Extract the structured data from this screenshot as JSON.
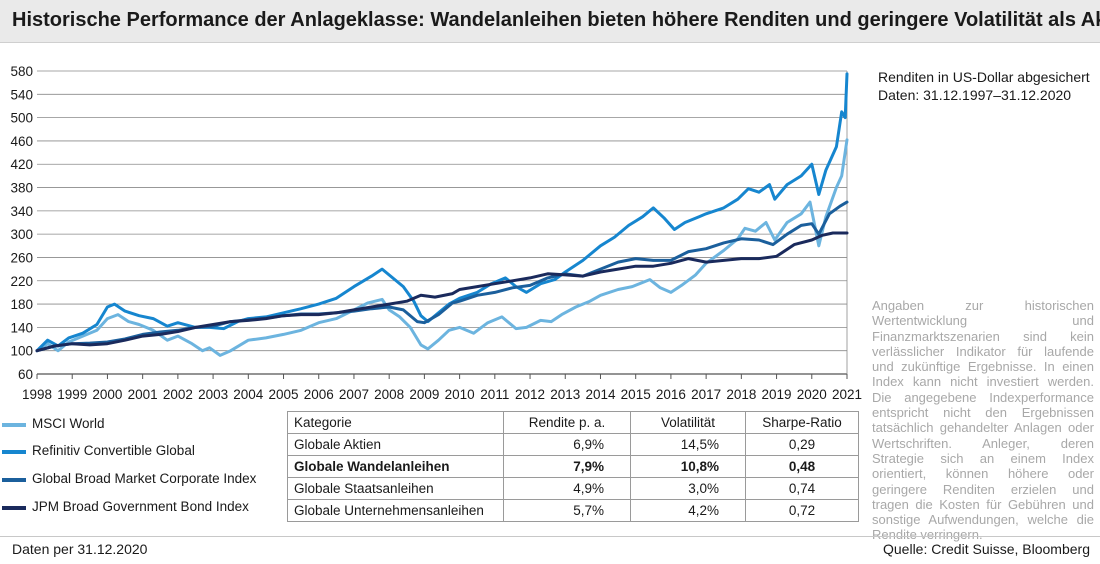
{
  "header": {
    "title": "Historische Performance der Anlageklasse: Wandelanleihen bieten höhere Renditen und geringere Volatilität als Aktien"
  },
  "notes": {
    "line1": "Renditen in US-Dollar abgesichert",
    "line2": "Daten: 31.12.1997–31.12.2020"
  },
  "disclaimer": "Angaben zur historischen Wertentwicklung und Finanzmarktszenarien sind kein verlässlicher Indikator für laufende und zukünftige Ergebnisse. In einen Index kann nicht investiert werden. Die angegebene Indexperformance entspricht nicht den Ergebnissen tatsächlich gehandelter Anlagen oder Wertschriften. Anleger, deren Strategie sich an einem Index orientiert, können höhere oder geringere Renditen erzielen und tragen die Kosten für Gebühren und sonstige Aufwendungen, welche die Rendite verringern.",
  "legend": [
    {
      "label": "MSCI World",
      "color": "#6cb4df"
    },
    {
      "label": "Refinitiv Convertible Global",
      "color": "#1686cf"
    },
    {
      "label": "Global Broad Market Corporate Index",
      "color": "#1b5f9c"
    },
    {
      "label": "JPM Broad Government Bond Index",
      "color": "#1a2a5c"
    }
  ],
  "table": {
    "headers": [
      "Kategorie",
      "Rendite p. a.",
      "Volatilität",
      "Sharpe-Ratio"
    ],
    "rows": [
      {
        "cells": [
          "Globale Aktien",
          "6,9%",
          "14,5%",
          "0,29"
        ],
        "bold": false
      },
      {
        "cells": [
          "Globale Wandelanleihen",
          "7,9%",
          "10,8%",
          "0,48"
        ],
        "bold": true
      },
      {
        "cells": [
          "Globale Staatsanleihen",
          "4,9%",
          "3,0%",
          "0,74"
        ],
        "bold": false
      },
      {
        "cells": [
          "Globale Unternehmensanleihen",
          "5,7%",
          "4,2%",
          "0,72"
        ],
        "bold": false
      }
    ]
  },
  "footer": {
    "left": "Daten per 31.12.2020",
    "right": "Quelle: Credit Suisse, Bloomberg"
  },
  "chart_data": {
    "type": "line",
    "title": "",
    "xlabel": "",
    "ylabel": "",
    "xlim": [
      1998,
      2021
    ],
    "ylim": [
      60,
      580
    ],
    "yticks": [
      60,
      100,
      140,
      180,
      220,
      260,
      300,
      340,
      380,
      420,
      460,
      500,
      540,
      580
    ],
    "xticks": [
      1998,
      1999,
      2000,
      2001,
      2002,
      2003,
      2004,
      2005,
      2006,
      2007,
      2008,
      2009,
      2010,
      2011,
      2012,
      2013,
      2014,
      2015,
      2016,
      2017,
      2018,
      2019,
      2020,
      2021
    ],
    "grid": "horizontal",
    "series": [
      {
        "name": "MSCI World",
        "color": "#6cb4df",
        "points": [
          [
            1998.0,
            100
          ],
          [
            1998.3,
            112
          ],
          [
            1998.6,
            100
          ],
          [
            1998.9,
            115
          ],
          [
            1999.3,
            125
          ],
          [
            1999.7,
            135
          ],
          [
            2000.0,
            155
          ],
          [
            2000.3,
            162
          ],
          [
            2000.6,
            150
          ],
          [
            2000.9,
            145
          ],
          [
            2001.3,
            135
          ],
          [
            2001.7,
            118
          ],
          [
            2002.0,
            125
          ],
          [
            2002.4,
            112
          ],
          [
            2002.7,
            100
          ],
          [
            2002.9,
            105
          ],
          [
            2003.2,
            92
          ],
          [
            2003.5,
            100
          ],
          [
            2004.0,
            118
          ],
          [
            2004.5,
            122
          ],
          [
            2005.0,
            128
          ],
          [
            2005.5,
            135
          ],
          [
            2006.0,
            148
          ],
          [
            2006.5,
            155
          ],
          [
            2007.0,
            170
          ],
          [
            2007.4,
            182
          ],
          [
            2007.8,
            188
          ],
          [
            2008.0,
            170
          ],
          [
            2008.3,
            158
          ],
          [
            2008.6,
            140
          ],
          [
            2008.9,
            110
          ],
          [
            2009.1,
            103
          ],
          [
            2009.4,
            118
          ],
          [
            2009.7,
            135
          ],
          [
            2010.0,
            140
          ],
          [
            2010.4,
            130
          ],
          [
            2010.8,
            148
          ],
          [
            2011.2,
            158
          ],
          [
            2011.6,
            138
          ],
          [
            2011.9,
            140
          ],
          [
            2012.3,
            152
          ],
          [
            2012.6,
            150
          ],
          [
            2012.9,
            162
          ],
          [
            2013.3,
            175
          ],
          [
            2013.7,
            185
          ],
          [
            2014.0,
            195
          ],
          [
            2014.5,
            205
          ],
          [
            2014.9,
            210
          ],
          [
            2015.4,
            222
          ],
          [
            2015.7,
            208
          ],
          [
            2016.0,
            200
          ],
          [
            2016.3,
            212
          ],
          [
            2016.7,
            230
          ],
          [
            2017.0,
            250
          ],
          [
            2017.5,
            272
          ],
          [
            2017.9,
            292
          ],
          [
            2018.1,
            310
          ],
          [
            2018.4,
            305
          ],
          [
            2018.7,
            320
          ],
          [
            2018.95,
            290
          ],
          [
            2019.3,
            320
          ],
          [
            2019.7,
            335
          ],
          [
            2019.95,
            355
          ],
          [
            2020.2,
            280
          ],
          [
            2020.4,
            330
          ],
          [
            2020.7,
            380
          ],
          [
            2020.85,
            400
          ],
          [
            2021.0,
            462
          ]
        ]
      },
      {
        "name": "Refinitiv Convertible Global",
        "color": "#1686cf",
        "points": [
          [
            1998.0,
            100
          ],
          [
            1998.3,
            118
          ],
          [
            1998.6,
            108
          ],
          [
            1998.9,
            122
          ],
          [
            1999.3,
            130
          ],
          [
            1999.7,
            145
          ],
          [
            2000.0,
            175
          ],
          [
            2000.2,
            180
          ],
          [
            2000.5,
            168
          ],
          [
            2000.9,
            160
          ],
          [
            2001.3,
            155
          ],
          [
            2001.7,
            142
          ],
          [
            2002.0,
            148
          ],
          [
            2002.5,
            140
          ],
          [
            2002.9,
            140
          ],
          [
            2003.3,
            138
          ],
          [
            2003.7,
            150
          ],
          [
            2004.0,
            155
          ],
          [
            2004.5,
            158
          ],
          [
            2005.0,
            165
          ],
          [
            2005.5,
            172
          ],
          [
            2006.0,
            180
          ],
          [
            2006.5,
            190
          ],
          [
            2007.0,
            210
          ],
          [
            2007.5,
            228
          ],
          [
            2007.8,
            240
          ],
          [
            2008.1,
            225
          ],
          [
            2008.4,
            210
          ],
          [
            2008.7,
            185
          ],
          [
            2008.9,
            160
          ],
          [
            2009.1,
            150
          ],
          [
            2009.4,
            165
          ],
          [
            2009.7,
            180
          ],
          [
            2010.0,
            190
          ],
          [
            2010.5,
            200
          ],
          [
            2010.9,
            215
          ],
          [
            2011.3,
            225
          ],
          [
            2011.6,
            210
          ],
          [
            2011.9,
            200
          ],
          [
            2012.3,
            215
          ],
          [
            2012.7,
            222
          ],
          [
            2013.0,
            235
          ],
          [
            2013.5,
            255
          ],
          [
            2014.0,
            280
          ],
          [
            2014.4,
            295
          ],
          [
            2014.8,
            315
          ],
          [
            2015.2,
            330
          ],
          [
            2015.5,
            345
          ],
          [
            2015.8,
            328
          ],
          [
            2016.1,
            308
          ],
          [
            2016.4,
            320
          ],
          [
            2016.8,
            330
          ],
          [
            2017.0,
            335
          ],
          [
            2017.5,
            345
          ],
          [
            2017.9,
            360
          ],
          [
            2018.2,
            378
          ],
          [
            2018.5,
            372
          ],
          [
            2018.8,
            385
          ],
          [
            2018.95,
            360
          ],
          [
            2019.3,
            385
          ],
          [
            2019.7,
            400
          ],
          [
            2020.0,
            420
          ],
          [
            2020.2,
            368
          ],
          [
            2020.4,
            410
          ],
          [
            2020.7,
            450
          ],
          [
            2020.85,
            510
          ],
          [
            2020.95,
            500
          ],
          [
            2021.0,
            575
          ]
        ]
      },
      {
        "name": "Global Broad Market Corporate Index",
        "color": "#1b5f9c",
        "points": [
          [
            1998.0,
            100
          ],
          [
            1998.5,
            108
          ],
          [
            1999.0,
            112
          ],
          [
            1999.5,
            113
          ],
          [
            2000.0,
            115
          ],
          [
            2000.5,
            120
          ],
          [
            2001.0,
            128
          ],
          [
            2001.5,
            132
          ],
          [
            2002.0,
            135
          ],
          [
            2002.5,
            140
          ],
          [
            2003.0,
            142
          ],
          [
            2003.5,
            150
          ],
          [
            2004.0,
            153
          ],
          [
            2004.5,
            156
          ],
          [
            2005.0,
            160
          ],
          [
            2005.5,
            163
          ],
          [
            2006.0,
            163
          ],
          [
            2006.5,
            165
          ],
          [
            2007.0,
            168
          ],
          [
            2007.5,
            172
          ],
          [
            2008.0,
            175
          ],
          [
            2008.4,
            170
          ],
          [
            2008.8,
            150
          ],
          [
            2009.0,
            148
          ],
          [
            2009.4,
            162
          ],
          [
            2009.8,
            182
          ],
          [
            2010.0,
            185
          ],
          [
            2010.5,
            195
          ],
          [
            2011.0,
            200
          ],
          [
            2011.5,
            208
          ],
          [
            2012.0,
            212
          ],
          [
            2012.5,
            225
          ],
          [
            2013.0,
            232
          ],
          [
            2013.5,
            228
          ],
          [
            2014.0,
            240
          ],
          [
            2014.5,
            252
          ],
          [
            2015.0,
            258
          ],
          [
            2015.5,
            255
          ],
          [
            2016.0,
            255
          ],
          [
            2016.5,
            270
          ],
          [
            2017.0,
            275
          ],
          [
            2017.5,
            285
          ],
          [
            2018.0,
            292
          ],
          [
            2018.5,
            290
          ],
          [
            2018.9,
            282
          ],
          [
            2019.3,
            300
          ],
          [
            2019.7,
            315
          ],
          [
            2020.0,
            318
          ],
          [
            2020.2,
            300
          ],
          [
            2020.5,
            335
          ],
          [
            2020.8,
            348
          ],
          [
            2021.0,
            355
          ]
        ]
      },
      {
        "name": "JPM Broad Government Bond Index",
        "color": "#1a2a5c",
        "points": [
          [
            1998.0,
            100
          ],
          [
            1998.5,
            108
          ],
          [
            1999.0,
            112
          ],
          [
            1999.5,
            110
          ],
          [
            2000.0,
            112
          ],
          [
            2000.5,
            118
          ],
          [
            2001.0,
            125
          ],
          [
            2001.5,
            128
          ],
          [
            2002.0,
            133
          ],
          [
            2002.5,
            140
          ],
          [
            2003.0,
            145
          ],
          [
            2003.5,
            150
          ],
          [
            2004.0,
            152
          ],
          [
            2004.5,
            155
          ],
          [
            2005.0,
            160
          ],
          [
            2005.5,
            162
          ],
          [
            2006.0,
            162
          ],
          [
            2006.5,
            165
          ],
          [
            2007.0,
            170
          ],
          [
            2007.5,
            175
          ],
          [
            2008.0,
            180
          ],
          [
            2008.5,
            185
          ],
          [
            2008.9,
            195
          ],
          [
            2009.3,
            192
          ],
          [
            2009.8,
            198
          ],
          [
            2010.0,
            205
          ],
          [
            2010.5,
            210
          ],
          [
            2011.0,
            215
          ],
          [
            2011.5,
            220
          ],
          [
            2012.0,
            225
          ],
          [
            2012.5,
            232
          ],
          [
            2013.0,
            230
          ],
          [
            2013.5,
            228
          ],
          [
            2014.0,
            235
          ],
          [
            2014.5,
            240
          ],
          [
            2015.0,
            245
          ],
          [
            2015.5,
            245
          ],
          [
            2016.0,
            250
          ],
          [
            2016.5,
            258
          ],
          [
            2017.0,
            252
          ],
          [
            2017.5,
            255
          ],
          [
            2018.0,
            258
          ],
          [
            2018.5,
            258
          ],
          [
            2019.0,
            262
          ],
          [
            2019.5,
            282
          ],
          [
            2020.0,
            290
          ],
          [
            2020.3,
            298
          ],
          [
            2020.6,
            302
          ],
          [
            2021.0,
            302
          ]
        ]
      }
    ]
  }
}
